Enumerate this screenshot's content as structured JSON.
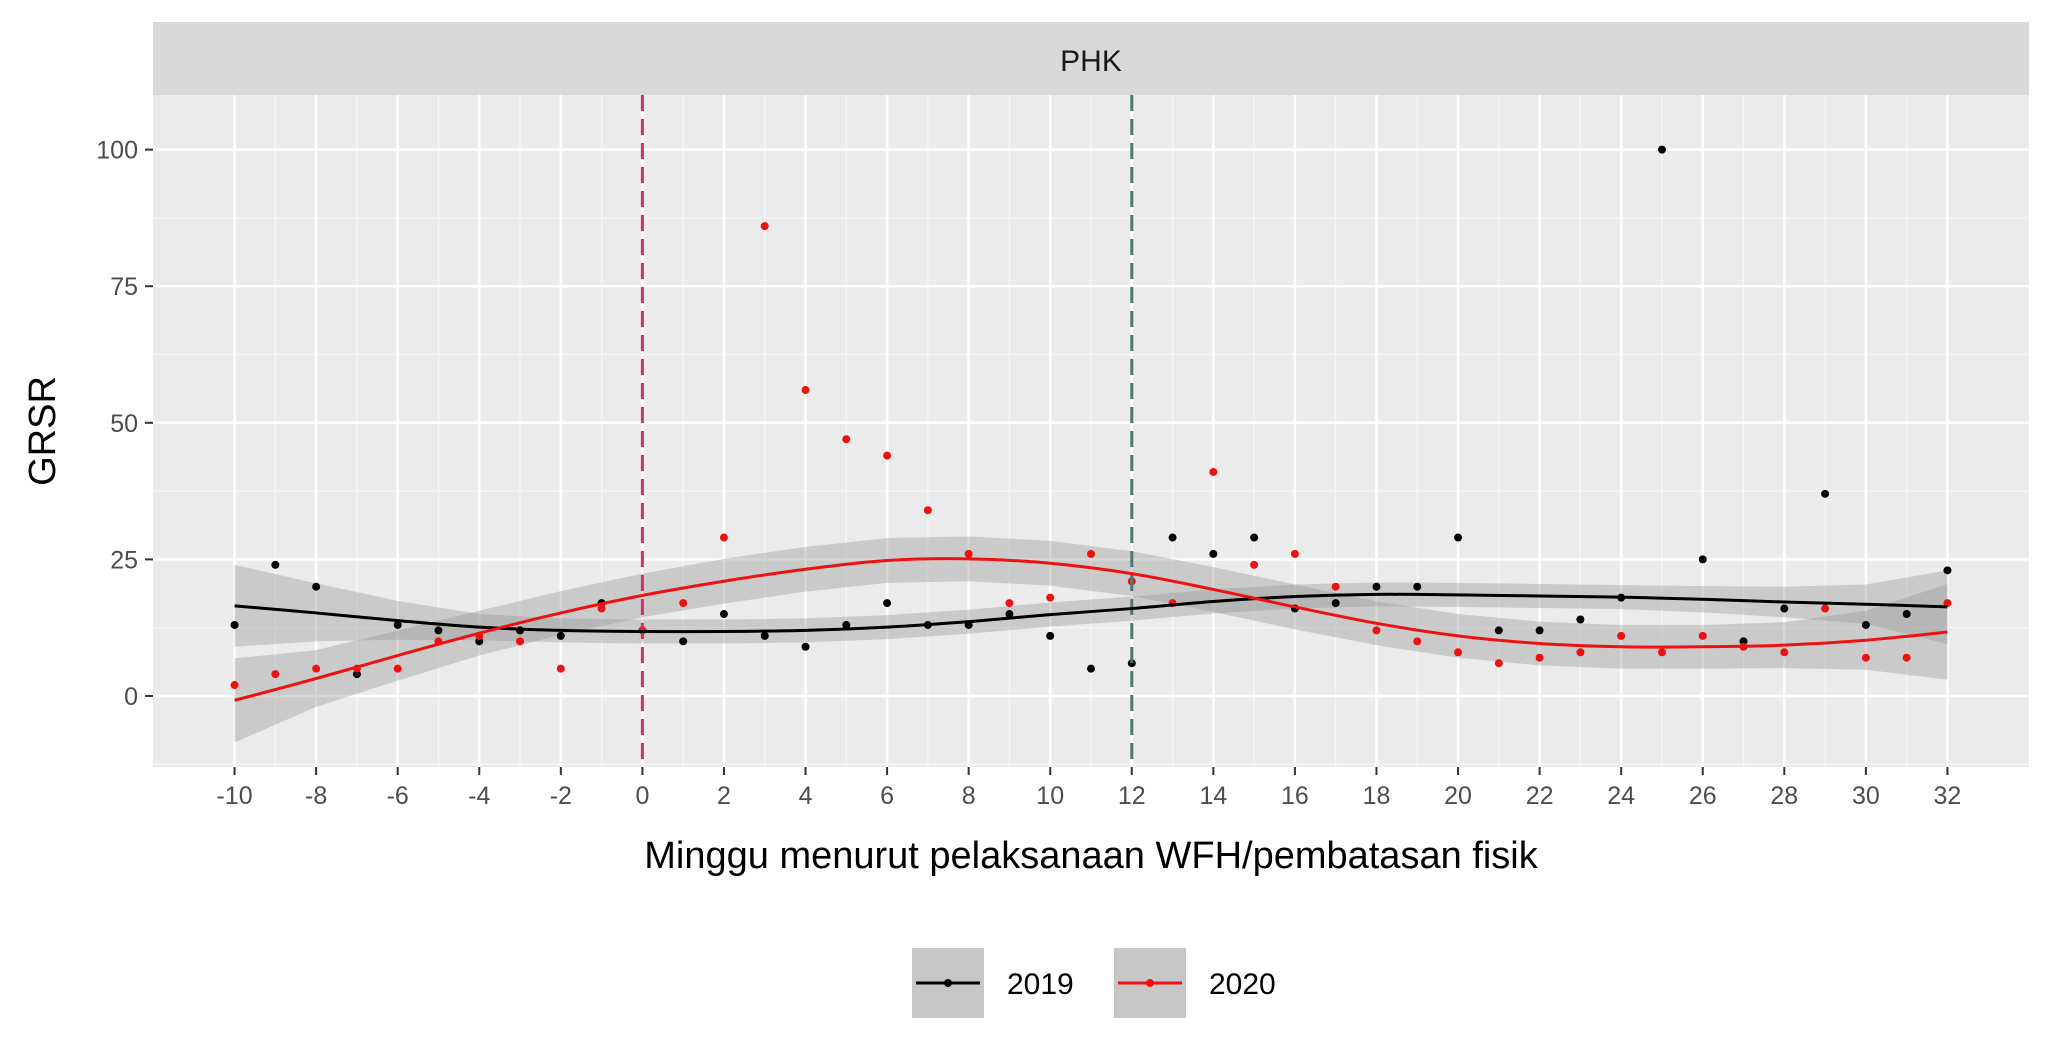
{
  "chart_data": {
    "type": "scatter",
    "title": "",
    "facet_label": "PHK",
    "xlabel": "Minggu menurut pelaksanaan WFH/pembatasan fisik",
    "ylabel": "GRSR",
    "xlim": [
      -12,
      34
    ],
    "ylim": [
      -13,
      110
    ],
    "x_ticks": [
      -10,
      -8,
      -6,
      -4,
      -2,
      0,
      2,
      4,
      6,
      8,
      10,
      12,
      14,
      16,
      18,
      20,
      22,
      24,
      26,
      28,
      30,
      32
    ],
    "y_ticks": [
      0,
      25,
      50,
      75,
      100
    ],
    "vlines": [
      {
        "x": 0,
        "color": "#cc3366"
      },
      {
        "x": 12,
        "color": "#4a7a70"
      }
    ],
    "grid": true,
    "legend_position": "bottom",
    "series": [
      {
        "name": "2019",
        "color": "#000000",
        "x": [
          -10,
          -9,
          -8,
          -7,
          -6,
          -5,
          -4,
          -3,
          -2,
          -1,
          0,
          1,
          2,
          3,
          4,
          5,
          6,
          7,
          8,
          9,
          10,
          11,
          12,
          13,
          14,
          15,
          16,
          17,
          18,
          19,
          20,
          21,
          22,
          23,
          24,
          25,
          26,
          27,
          28,
          29,
          30,
          31,
          32
        ],
        "y": [
          13,
          24,
          20,
          4,
          13,
          12,
          10,
          12,
          11,
          17,
          12,
          10,
          15,
          11,
          9,
          13,
          17,
          13,
          13,
          15,
          11,
          5,
          6,
          29,
          26,
          29,
          16,
          17,
          20,
          20,
          29,
          12,
          12,
          14,
          18,
          100,
          25,
          10,
          16,
          37,
          13,
          15,
          23
        ],
        "smooth": [
          [
            -10,
            16.5
          ],
          [
            -8,
            15.2
          ],
          [
            -6,
            13.8
          ],
          [
            -4,
            12.6
          ],
          [
            -2,
            12.0
          ],
          [
            0,
            11.8
          ],
          [
            2,
            11.8
          ],
          [
            4,
            12.0
          ],
          [
            6,
            12.6
          ],
          [
            8,
            13.6
          ],
          [
            10,
            14.9
          ],
          [
            12,
            16.0
          ],
          [
            14,
            17.3
          ],
          [
            16,
            18.2
          ],
          [
            18,
            18.6
          ],
          [
            20,
            18.5
          ],
          [
            22,
            18.3
          ],
          [
            24,
            18.1
          ],
          [
            26,
            17.7
          ],
          [
            28,
            17.2
          ],
          [
            30,
            16.8
          ],
          [
            32,
            16.3
          ]
        ],
        "band": [
          [
            -10,
            9.0,
            24.0
          ],
          [
            -8,
            10.0,
            20.6
          ],
          [
            -6,
            10.3,
            17.4
          ],
          [
            -4,
            10.2,
            15.0
          ],
          [
            -2,
            9.8,
            14.2
          ],
          [
            0,
            9.6,
            14.0
          ],
          [
            2,
            9.6,
            14.0
          ],
          [
            4,
            9.8,
            14.2
          ],
          [
            6,
            10.4,
            14.8
          ],
          [
            8,
            11.4,
            15.8
          ],
          [
            10,
            12.7,
            17.1
          ],
          [
            12,
            13.8,
            18.2
          ],
          [
            14,
            15.1,
            19.5
          ],
          [
            16,
            16.0,
            20.4
          ],
          [
            18,
            16.4,
            20.8
          ],
          [
            20,
            16.3,
            20.7
          ],
          [
            22,
            16.1,
            20.5
          ],
          [
            24,
            15.9,
            20.3
          ],
          [
            26,
            15.3,
            20.1
          ],
          [
            28,
            14.4,
            20.0
          ],
          [
            30,
            13.2,
            20.4
          ],
          [
            32,
            9.5,
            23.0
          ]
        ]
      },
      {
        "name": "2020",
        "color": "#ee1111",
        "x": [
          -10,
          -9,
          -8,
          -7,
          -6,
          -5,
          -4,
          -3,
          -2,
          -1,
          0,
          1,
          2,
          3,
          4,
          5,
          6,
          7,
          8,
          9,
          10,
          11,
          12,
          13,
          14,
          15,
          16,
          17,
          18,
          19,
          20,
          21,
          22,
          23,
          24,
          25,
          26,
          27,
          28,
          29,
          30,
          31,
          32
        ],
        "y": [
          2,
          4,
          5,
          5,
          5,
          10,
          11,
          10,
          5,
          16,
          12,
          17,
          29,
          86,
          56,
          47,
          44,
          34,
          26,
          17,
          18,
          26,
          21,
          17,
          41,
          24,
          26,
          20,
          12,
          10,
          8,
          6,
          7,
          8,
          11,
          8,
          11,
          9,
          8,
          16,
          7,
          7,
          17
        ],
        "smooth": [
          [
            -10,
            -0.8
          ],
          [
            -8,
            3.2
          ],
          [
            -6,
            7.4
          ],
          [
            -4,
            11.5
          ],
          [
            -2,
            15.2
          ],
          [
            0,
            18.4
          ],
          [
            2,
            21.0
          ],
          [
            4,
            23.2
          ],
          [
            6,
            24.8
          ],
          [
            8,
            25.1
          ],
          [
            10,
            24.3
          ],
          [
            12,
            22.4
          ],
          [
            14,
            19.5
          ],
          [
            16,
            16.3
          ],
          [
            18,
            13.3
          ],
          [
            20,
            11.0
          ],
          [
            22,
            9.6
          ],
          [
            24,
            9.0
          ],
          [
            26,
            9.0
          ],
          [
            28,
            9.3
          ],
          [
            30,
            10.2
          ],
          [
            32,
            11.7
          ]
        ],
        "band": [
          [
            -10,
            -8.5,
            6.9
          ],
          [
            -8,
            -2.0,
            8.4
          ],
          [
            -6,
            2.8,
            12.0
          ],
          [
            -4,
            7.4,
            15.6
          ],
          [
            -2,
            11.2,
            19.2
          ],
          [
            0,
            14.4,
            22.4
          ],
          [
            2,
            16.9,
            25.1
          ],
          [
            4,
            19.1,
            27.3
          ],
          [
            6,
            20.7,
            28.9
          ],
          [
            8,
            21.0,
            29.2
          ],
          [
            10,
            20.2,
            28.4
          ],
          [
            12,
            18.3,
            26.5
          ],
          [
            14,
            15.4,
            23.6
          ],
          [
            16,
            12.2,
            20.4
          ],
          [
            18,
            9.3,
            17.3
          ],
          [
            20,
            7.0,
            15.0
          ],
          [
            22,
            5.6,
            13.6
          ],
          [
            24,
            5.0,
            13.0
          ],
          [
            26,
            5.0,
            13.0
          ],
          [
            28,
            5.1,
            13.5
          ],
          [
            30,
            4.8,
            15.6
          ],
          [
            32,
            3.0,
            20.5
          ]
        ]
      }
    ]
  }
}
